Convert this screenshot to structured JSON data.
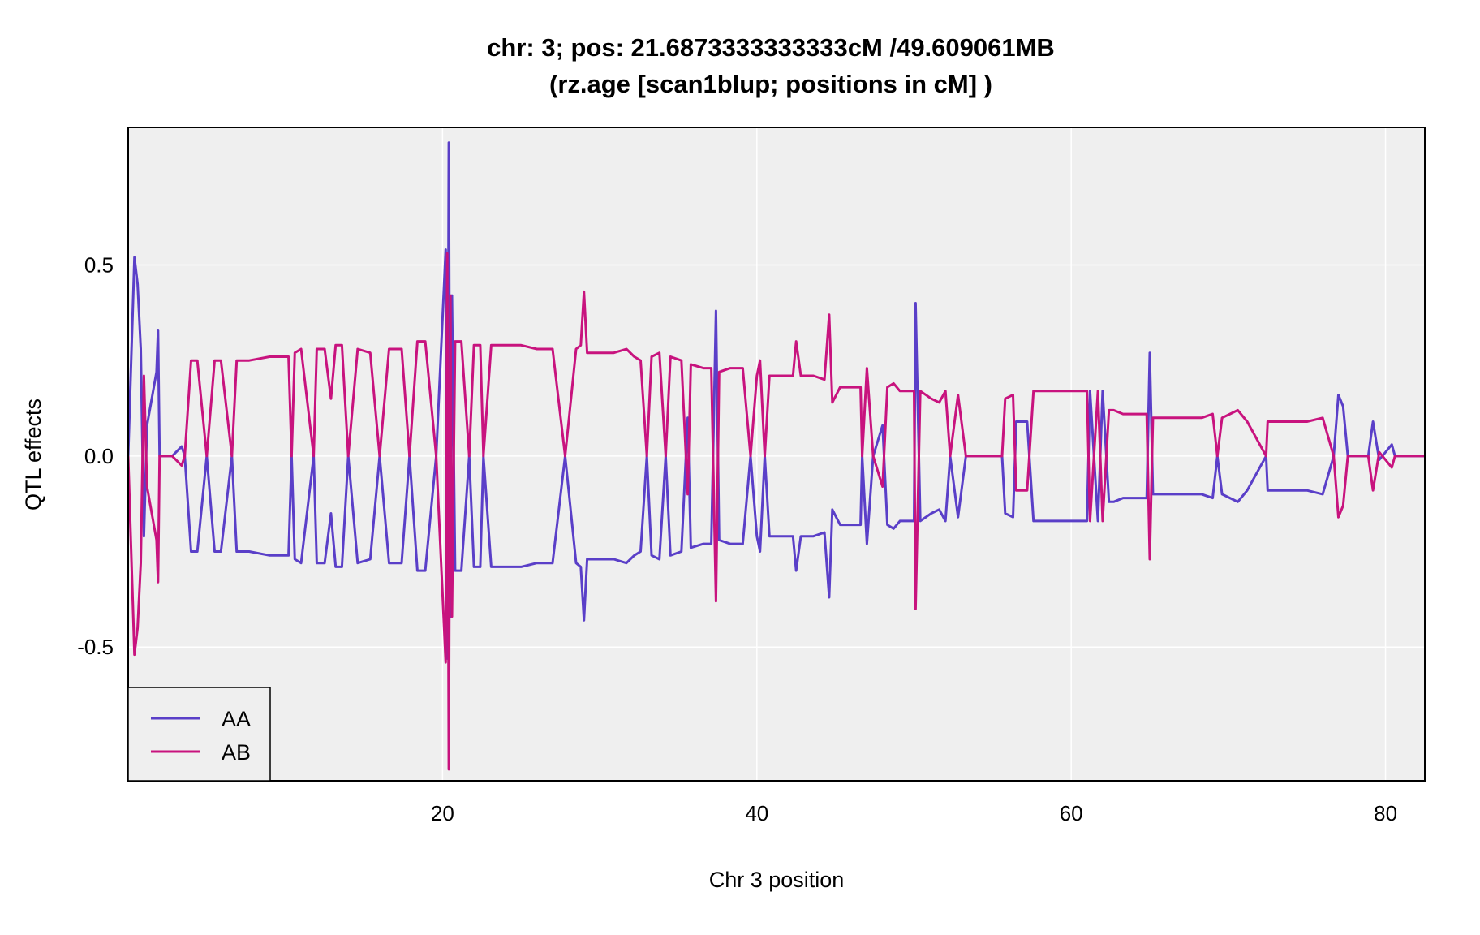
{
  "chart_data": {
    "type": "line",
    "title": "chr: 3; pos: 21.6873333333333cM /49.609061MB",
    "subtitle": "(rz.age [scan1blup; positions in cM] )",
    "xlabel": "Chr 3 position",
    "ylabel": "QTL effects",
    "xlim": [
      0,
      82.5
    ],
    "ylim": [
      -0.85,
      0.86
    ],
    "xticks": [
      20,
      40,
      60,
      80
    ],
    "xtick_labels": [
      "20",
      "40",
      "60",
      "80"
    ],
    "yticks": [
      -0.5,
      0.0,
      0.5
    ],
    "ytick_labels": [
      "-0.5",
      "0.0",
      "0.5"
    ],
    "grid": true,
    "panel_background": "#efefef",
    "legend": {
      "position": "bottom-left"
    },
    "series": [
      {
        "name": "AA",
        "color": "#5a3fc8",
        "points": [
          [
            0,
            0
          ],
          [
            0.4,
            0.52
          ],
          [
            0.6,
            0.45
          ],
          [
            0.8,
            0.28
          ],
          [
            1.0,
            -0.21
          ],
          [
            1.2,
            0.08
          ],
          [
            1.8,
            0.22
          ],
          [
            1.9,
            0.33
          ],
          [
            2.0,
            0
          ],
          [
            2.8,
            0
          ],
          [
            3.4,
            0.025
          ],
          [
            3.6,
            0
          ],
          [
            4.0,
            -0.25
          ],
          [
            4.4,
            -0.25
          ],
          [
            5.0,
            0
          ],
          [
            5.5,
            -0.25
          ],
          [
            5.9,
            -0.25
          ],
          [
            6.6,
            0
          ],
          [
            6.9,
            -0.25
          ],
          [
            7.7,
            -0.25
          ],
          [
            9.0,
            -0.26
          ],
          [
            10.2,
            -0.26
          ],
          [
            10.4,
            0
          ],
          [
            10.6,
            -0.27
          ],
          [
            11.0,
            -0.28
          ],
          [
            11.8,
            0
          ],
          [
            12.0,
            -0.28
          ],
          [
            12.5,
            -0.28
          ],
          [
            12.9,
            -0.15
          ],
          [
            13.2,
            -0.29
          ],
          [
            13.6,
            -0.29
          ],
          [
            14.0,
            0
          ],
          [
            14.6,
            -0.28
          ],
          [
            15.4,
            -0.27
          ],
          [
            16.0,
            0
          ],
          [
            16.6,
            -0.28
          ],
          [
            17.4,
            -0.28
          ],
          [
            17.9,
            0
          ],
          [
            18.4,
            -0.3
          ],
          [
            18.9,
            -0.3
          ],
          [
            19.6,
            0
          ],
          [
            20.2,
            0.54
          ],
          [
            20.3,
            -0.53
          ],
          [
            20.4,
            0.82
          ],
          [
            20.5,
            -0.42
          ],
          [
            20.6,
            0.42
          ],
          [
            20.8,
            -0.3
          ],
          [
            21.2,
            -0.3
          ],
          [
            21.7,
            0
          ],
          [
            22.0,
            -0.29
          ],
          [
            22.4,
            -0.29
          ],
          [
            22.6,
            0
          ],
          [
            23.1,
            -0.29
          ],
          [
            23.4,
            -0.29
          ],
          [
            25.0,
            -0.29
          ],
          [
            26.0,
            -0.28
          ],
          [
            27.0,
            -0.28
          ],
          [
            27.8,
            0
          ],
          [
            28.5,
            -0.28
          ],
          [
            28.8,
            -0.29
          ],
          [
            29.0,
            -0.43
          ],
          [
            29.2,
            -0.27
          ],
          [
            30.5,
            -0.27
          ],
          [
            30.9,
            -0.27
          ],
          [
            31.7,
            -0.28
          ],
          [
            32.2,
            -0.26
          ],
          [
            32.6,
            -0.25
          ],
          [
            33.0,
            0
          ],
          [
            33.3,
            -0.26
          ],
          [
            33.8,
            -0.27
          ],
          [
            34.2,
            0
          ],
          [
            34.5,
            -0.26
          ],
          [
            35.2,
            -0.25
          ],
          [
            35.6,
            0.1
          ],
          [
            35.8,
            -0.24
          ],
          [
            36.6,
            -0.23
          ],
          [
            37.1,
            -0.23
          ],
          [
            37.4,
            0.38
          ],
          [
            37.6,
            -0.22
          ],
          [
            38.3,
            -0.23
          ],
          [
            39.1,
            -0.23
          ],
          [
            39.6,
            0
          ],
          [
            40.0,
            -0.21
          ],
          [
            40.2,
            -0.25
          ],
          [
            40.5,
            0
          ],
          [
            40.8,
            -0.21
          ],
          [
            41.6,
            -0.21
          ],
          [
            42.3,
            -0.21
          ],
          [
            42.5,
            -0.3
          ],
          [
            42.8,
            -0.21
          ],
          [
            43.6,
            -0.21
          ],
          [
            44.3,
            -0.2
          ],
          [
            44.6,
            -0.37
          ],
          [
            44.8,
            -0.14
          ],
          [
            45.3,
            -0.18
          ],
          [
            46.0,
            -0.18
          ],
          [
            46.6,
            -0.18
          ],
          [
            46.7,
            0
          ],
          [
            47.0,
            -0.23
          ],
          [
            47.4,
            0
          ],
          [
            48.0,
            0.08
          ],
          [
            48.3,
            -0.18
          ],
          [
            48.7,
            -0.19
          ],
          [
            49.1,
            -0.17
          ],
          [
            50.0,
            -0.17
          ],
          [
            50.1,
            0.4
          ],
          [
            50.4,
            -0.17
          ],
          [
            51.1,
            -0.15
          ],
          [
            51.6,
            -0.14
          ],
          [
            52.0,
            -0.17
          ],
          [
            52.3,
            0
          ],
          [
            52.8,
            -0.16
          ],
          [
            53.3,
            0
          ],
          [
            55.6,
            0
          ],
          [
            55.8,
            -0.15
          ],
          [
            56.3,
            -0.16
          ],
          [
            56.5,
            0.09
          ],
          [
            57.2,
            0.09
          ],
          [
            57.6,
            -0.17
          ],
          [
            58.3,
            -0.17
          ],
          [
            59.5,
            -0.17
          ],
          [
            60.2,
            -0.17
          ],
          [
            61.0,
            -0.17
          ],
          [
            61.2,
            0.17
          ],
          [
            61.7,
            -0.17
          ],
          [
            62.0,
            0.17
          ],
          [
            62.4,
            -0.12
          ],
          [
            62.7,
            -0.12
          ],
          [
            63.3,
            -0.11
          ],
          [
            64.1,
            -0.11
          ],
          [
            64.8,
            -0.11
          ],
          [
            65.0,
            0.27
          ],
          [
            65.2,
            -0.1
          ],
          [
            66.6,
            -0.1
          ],
          [
            67.5,
            -0.1
          ],
          [
            68.3,
            -0.1
          ],
          [
            69.0,
            -0.11
          ],
          [
            69.3,
            0
          ],
          [
            69.6,
            -0.1
          ],
          [
            70.1,
            -0.11
          ],
          [
            70.6,
            -0.12
          ],
          [
            71.2,
            -0.09
          ],
          [
            72.4,
            0
          ],
          [
            72.5,
            -0.09
          ],
          [
            74.0,
            -0.09
          ],
          [
            75.0,
            -0.09
          ],
          [
            76.0,
            -0.1
          ],
          [
            76.7,
            0
          ],
          [
            77.0,
            0.16
          ],
          [
            77.3,
            0.13
          ],
          [
            77.6,
            0
          ],
          [
            78.9,
            0
          ],
          [
            79.2,
            0.09
          ],
          [
            79.6,
            -0.01
          ],
          [
            80.4,
            0.03
          ],
          [
            80.6,
            0
          ],
          [
            82.5,
            0
          ]
        ]
      },
      {
        "name": "AB",
        "color": "#c8137e",
        "points": [
          [
            0,
            0
          ],
          [
            0.4,
            -0.52
          ],
          [
            0.6,
            -0.45
          ],
          [
            0.8,
            -0.28
          ],
          [
            1.0,
            0.21
          ],
          [
            1.2,
            -0.08
          ],
          [
            1.8,
            -0.22
          ],
          [
            1.9,
            -0.33
          ],
          [
            2.0,
            0
          ],
          [
            2.8,
            0
          ],
          [
            3.4,
            -0.025
          ],
          [
            3.6,
            0
          ],
          [
            4.0,
            0.25
          ],
          [
            4.4,
            0.25
          ],
          [
            5.0,
            0
          ],
          [
            5.5,
            0.25
          ],
          [
            5.9,
            0.25
          ],
          [
            6.6,
            0
          ],
          [
            6.9,
            0.25
          ],
          [
            7.7,
            0.25
          ],
          [
            9.0,
            0.26
          ],
          [
            10.2,
            0.26
          ],
          [
            10.4,
            0
          ],
          [
            10.6,
            0.27
          ],
          [
            11.0,
            0.28
          ],
          [
            11.8,
            0
          ],
          [
            12.0,
            0.28
          ],
          [
            12.5,
            0.28
          ],
          [
            12.9,
            0.15
          ],
          [
            13.2,
            0.29
          ],
          [
            13.6,
            0.29
          ],
          [
            14.0,
            0
          ],
          [
            14.6,
            0.28
          ],
          [
            15.4,
            0.27
          ],
          [
            16.0,
            0
          ],
          [
            16.6,
            0.28
          ],
          [
            17.4,
            0.28
          ],
          [
            17.9,
            0
          ],
          [
            18.4,
            0.3
          ],
          [
            18.9,
            0.3
          ],
          [
            19.6,
            0
          ],
          [
            20.2,
            -0.54
          ],
          [
            20.3,
            0.53
          ],
          [
            20.4,
            -0.82
          ],
          [
            20.5,
            0.42
          ],
          [
            20.6,
            -0.42
          ],
          [
            20.8,
            0.3
          ],
          [
            21.2,
            0.3
          ],
          [
            21.7,
            0
          ],
          [
            22.0,
            0.29
          ],
          [
            22.4,
            0.29
          ],
          [
            22.6,
            0
          ],
          [
            23.1,
            0.29
          ],
          [
            23.4,
            0.29
          ],
          [
            25.0,
            0.29
          ],
          [
            26.0,
            0.28
          ],
          [
            27.0,
            0.28
          ],
          [
            27.8,
            0
          ],
          [
            28.5,
            0.28
          ],
          [
            28.8,
            0.29
          ],
          [
            29.0,
            0.43
          ],
          [
            29.2,
            0.27
          ],
          [
            30.5,
            0.27
          ],
          [
            30.9,
            0.27
          ],
          [
            31.7,
            0.28
          ],
          [
            32.2,
            0.26
          ],
          [
            32.6,
            0.25
          ],
          [
            33.0,
            0
          ],
          [
            33.3,
            0.26
          ],
          [
            33.8,
            0.27
          ],
          [
            34.2,
            0
          ],
          [
            34.5,
            0.26
          ],
          [
            35.2,
            0.25
          ],
          [
            35.6,
            -0.1
          ],
          [
            35.8,
            0.24
          ],
          [
            36.6,
            0.23
          ],
          [
            37.1,
            0.23
          ],
          [
            37.4,
            -0.38
          ],
          [
            37.6,
            0.22
          ],
          [
            38.3,
            0.23
          ],
          [
            39.1,
            0.23
          ],
          [
            39.6,
            0
          ],
          [
            40.0,
            0.21
          ],
          [
            40.2,
            0.25
          ],
          [
            40.5,
            0
          ],
          [
            40.8,
            0.21
          ],
          [
            41.6,
            0.21
          ],
          [
            42.3,
            0.21
          ],
          [
            42.5,
            0.3
          ],
          [
            42.8,
            0.21
          ],
          [
            43.6,
            0.21
          ],
          [
            44.3,
            0.2
          ],
          [
            44.6,
            0.37
          ],
          [
            44.8,
            0.14
          ],
          [
            45.3,
            0.18
          ],
          [
            46.0,
            0.18
          ],
          [
            46.6,
            0.18
          ],
          [
            46.7,
            0
          ],
          [
            47.0,
            0.23
          ],
          [
            47.4,
            0
          ],
          [
            48.0,
            -0.08
          ],
          [
            48.3,
            0.18
          ],
          [
            48.7,
            0.19
          ],
          [
            49.1,
            0.17
          ],
          [
            50.0,
            0.17
          ],
          [
            50.1,
            -0.4
          ],
          [
            50.4,
            0.17
          ],
          [
            51.1,
            0.15
          ],
          [
            51.6,
            0.14
          ],
          [
            52.0,
            0.17
          ],
          [
            52.3,
            0
          ],
          [
            52.8,
            0.16
          ],
          [
            53.3,
            0
          ],
          [
            55.6,
            0
          ],
          [
            55.8,
            0.15
          ],
          [
            56.3,
            0.16
          ],
          [
            56.5,
            -0.09
          ],
          [
            57.2,
            -0.09
          ],
          [
            57.6,
            0.17
          ],
          [
            58.3,
            0.17
          ],
          [
            59.5,
            0.17
          ],
          [
            60.2,
            0.17
          ],
          [
            61.0,
            0.17
          ],
          [
            61.2,
            -0.17
          ],
          [
            61.7,
            0.17
          ],
          [
            62.0,
            -0.17
          ],
          [
            62.4,
            0.12
          ],
          [
            62.7,
            0.12
          ],
          [
            63.3,
            0.11
          ],
          [
            64.1,
            0.11
          ],
          [
            64.8,
            0.11
          ],
          [
            65.0,
            -0.27
          ],
          [
            65.2,
            0.1
          ],
          [
            66.6,
            0.1
          ],
          [
            67.5,
            0.1
          ],
          [
            68.3,
            0.1
          ],
          [
            69.0,
            0.11
          ],
          [
            69.3,
            0
          ],
          [
            69.6,
            0.1
          ],
          [
            70.1,
            0.11
          ],
          [
            70.6,
            0.12
          ],
          [
            71.2,
            0.09
          ],
          [
            72.4,
            0
          ],
          [
            72.5,
            0.09
          ],
          [
            74.0,
            0.09
          ],
          [
            75.0,
            0.09
          ],
          [
            76.0,
            0.1
          ],
          [
            76.7,
            0
          ],
          [
            77.0,
            -0.16
          ],
          [
            77.3,
            -0.13
          ],
          [
            77.6,
            0
          ],
          [
            78.9,
            0
          ],
          [
            79.2,
            -0.09
          ],
          [
            79.6,
            0.01
          ],
          [
            80.4,
            -0.03
          ],
          [
            80.6,
            0
          ],
          [
            82.5,
            0
          ]
        ]
      }
    ]
  }
}
